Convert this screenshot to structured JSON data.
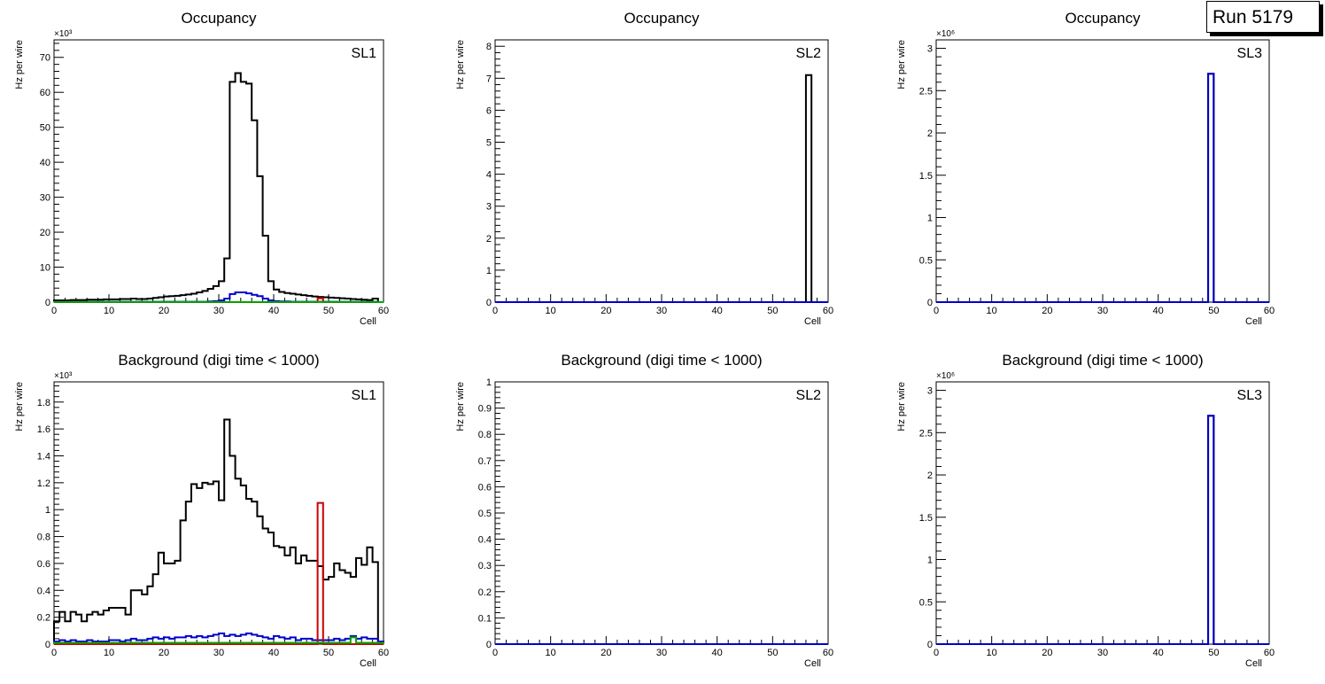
{
  "run_label": "Run 5179",
  "colors": {
    "black": "#000000",
    "blue": "#0000cc",
    "red": "#cc0000",
    "green": "#00aa00"
  },
  "chart_data": [
    {
      "type": "histogram",
      "title": "Occupancy",
      "label": "SL1",
      "xlabel": "Cell",
      "ylabel": "Hz per wire",
      "exponent": "×10³",
      "xlim": [
        0,
        60
      ],
      "ylim": [
        0,
        75
      ],
      "x_ticks": [
        0,
        10,
        20,
        30,
        40,
        50,
        60
      ],
      "y_ticks": [
        0,
        10,
        20,
        30,
        40,
        50,
        60,
        70
      ],
      "series": [
        {
          "name": "total",
          "color": "#000000",
          "values": [
            0.5,
            0.5,
            0.5,
            0.6,
            0.6,
            0.6,
            0.7,
            0.7,
            0.7,
            0.8,
            0.8,
            0.8,
            0.9,
            0.9,
            1.0,
            0.9,
            0.9,
            1.0,
            1.2,
            1.4,
            1.6,
            1.7,
            1.8,
            2.0,
            2.2,
            2.4,
            2.8,
            3.2,
            3.8,
            4.6,
            6.0,
            12.5,
            63.0,
            65.5,
            63.0,
            62.5,
            52.0,
            36.0,
            19.0,
            6.0,
            3.6,
            2.9,
            2.6,
            2.4,
            2.2,
            2.0,
            1.8,
            1.6,
            1.5,
            1.4,
            1.3,
            1.2,
            1.1,
            1.0,
            0.9,
            0.8,
            0.7,
            0.6,
            1.0,
            0.0
          ]
        },
        {
          "name": "blue",
          "color": "#0000cc",
          "values": [
            0.1,
            0.1,
            0.1,
            0.1,
            0.1,
            0.1,
            0.1,
            0.1,
            0.1,
            0.1,
            0.1,
            0.1,
            0.1,
            0.1,
            0.1,
            0.1,
            0.1,
            0.1,
            0.1,
            0.1,
            0.1,
            0.1,
            0.1,
            0.1,
            0.1,
            0.1,
            0.1,
            0.1,
            0.2,
            0.3,
            0.5,
            1.0,
            2.3,
            2.8,
            2.8,
            2.5,
            2.1,
            1.7,
            1.0,
            0.5,
            0.3,
            0.2,
            0.2,
            0.1,
            0.1,
            0.1,
            0.1,
            0.1,
            0.1,
            0.1,
            0.1,
            0.1,
            0.1,
            0.1,
            0.1,
            0.1,
            0.1,
            0.1,
            0.1,
            0.0
          ]
        },
        {
          "name": "red",
          "color": "#cc0000",
          "values": [
            0,
            0,
            0,
            0,
            0,
            0,
            0,
            0,
            0,
            0,
            0,
            0,
            0,
            0,
            0,
            0,
            0,
            0,
            0,
            0,
            0,
            0,
            0,
            0,
            0,
            0,
            0,
            0,
            0,
            0,
            0,
            0,
            0,
            0,
            0,
            0,
            0,
            0,
            0,
            0,
            0,
            0,
            0,
            0,
            0,
            0,
            0,
            0,
            1.1,
            0,
            0,
            0,
            0,
            0,
            0,
            0,
            0,
            0,
            0,
            0
          ]
        },
        {
          "name": "green",
          "color": "#00aa00",
          "values": [
            0.02,
            0.02,
            0.02,
            0.02,
            0.02,
            0.02,
            0.02,
            0.02,
            0.02,
            0.02,
            0.02,
            0.02,
            0.02,
            0.02,
            0.02,
            0.02,
            0.02,
            0.02,
            0.02,
            0.02,
            0.02,
            0.02,
            0.02,
            0.02,
            0.02,
            0.02,
            0.02,
            0.02,
            0.02,
            0.02,
            0.02,
            0.02,
            0.02,
            0.02,
            0.02,
            0.02,
            0.02,
            0.02,
            0.02,
            0.02,
            0.02,
            0.02,
            0.02,
            0.02,
            0.02,
            0.02,
            0.02,
            0.02,
            0.02,
            0.02,
            0.02,
            0.02,
            0.02,
            0.02,
            0.02,
            0.02,
            0.02,
            0.02,
            0.02,
            0.0
          ]
        }
      ]
    },
    {
      "type": "histogram",
      "title": "Occupancy",
      "label": "SL2",
      "xlabel": "Cell",
      "ylabel": "Hz per wire",
      "exponent": "",
      "xlim": [
        0,
        60
      ],
      "ylim": [
        0,
        8.2
      ],
      "x_ticks": [
        0,
        10,
        20,
        30,
        40,
        50,
        60
      ],
      "y_ticks": [
        0,
        1,
        2,
        3,
        4,
        5,
        6,
        7,
        8
      ],
      "series": [
        {
          "name": "total",
          "color": "#000000",
          "values": [
            0,
            0,
            0,
            0,
            0,
            0,
            0,
            0,
            0,
            0,
            0,
            0,
            0,
            0,
            0,
            0,
            0,
            0,
            0,
            0,
            0,
            0,
            0,
            0,
            0,
            0,
            0,
            0,
            0,
            0,
            0,
            0,
            0,
            0,
            0,
            0,
            0,
            0,
            0,
            0,
            0,
            0,
            0,
            0,
            0,
            0,
            0,
            0,
            0,
            0,
            0,
            0,
            0,
            0,
            0,
            0,
            7.1,
            0,
            0,
            0
          ]
        },
        {
          "name": "blue",
          "color": "#0000cc",
          "values": [
            0,
            0,
            0,
            0,
            0,
            0,
            0,
            0,
            0,
            0,
            0,
            0,
            0,
            0,
            0,
            0,
            0,
            0,
            0,
            0,
            0,
            0,
            0,
            0,
            0,
            0,
            0,
            0,
            0,
            0,
            0,
            0,
            0,
            0,
            0,
            0,
            0,
            0,
            0,
            0,
            0,
            0,
            0,
            0,
            0,
            0,
            0,
            0,
            0,
            0,
            0,
            0,
            0,
            0,
            0,
            0,
            0,
            0,
            0,
            0
          ]
        }
      ]
    },
    {
      "type": "histogram",
      "title": "Occupancy",
      "label": "SL3",
      "xlabel": "Cell",
      "ylabel": "Hz per wire",
      "exponent": "×10⁶",
      "xlim": [
        0,
        60
      ],
      "ylim": [
        0,
        3.1
      ],
      "x_ticks": [
        0,
        10,
        20,
        30,
        40,
        50,
        60
      ],
      "y_ticks": [
        0,
        0.5,
        1,
        1.5,
        2,
        2.5,
        3
      ],
      "series": [
        {
          "name": "total",
          "color": "#000000",
          "values": [
            0,
            0,
            0,
            0,
            0,
            0,
            0,
            0,
            0,
            0,
            0,
            0,
            0,
            0,
            0,
            0,
            0,
            0,
            0,
            0,
            0,
            0,
            0,
            0,
            0,
            0,
            0,
            0,
            0,
            0,
            0,
            0,
            0,
            0,
            0,
            0,
            0,
            0,
            0,
            0,
            0,
            0,
            0,
            0,
            0,
            0,
            0,
            0,
            0,
            2.7,
            0,
            0,
            0,
            0,
            0,
            0,
            0,
            0,
            0,
            0
          ]
        },
        {
          "name": "blue",
          "color": "#0000cc",
          "values": [
            0,
            0,
            0,
            0,
            0,
            0,
            0,
            0,
            0,
            0,
            0,
            0,
            0,
            0,
            0,
            0,
            0,
            0,
            0,
            0,
            0,
            0,
            0,
            0,
            0,
            0,
            0,
            0,
            0,
            0,
            0,
            0,
            0,
            0,
            0,
            0,
            0,
            0,
            0,
            0,
            0,
            0,
            0,
            0,
            0,
            0,
            0,
            0,
            0,
            2.7,
            0,
            0,
            0,
            0,
            0,
            0,
            0,
            0,
            0,
            0
          ]
        }
      ]
    },
    {
      "type": "histogram",
      "title": "Background (digi time < 1000)",
      "label": "SL1",
      "xlabel": "Cell",
      "ylabel": "Hz per wire",
      "exponent": "×10³",
      "xlim": [
        0,
        60
      ],
      "ylim": [
        0,
        1.95
      ],
      "x_ticks": [
        0,
        10,
        20,
        30,
        40,
        50,
        60
      ],
      "y_ticks": [
        0,
        0.2,
        0.4,
        0.6,
        0.8,
        1,
        1.2,
        1.4,
        1.6,
        1.8
      ],
      "series": [
        {
          "name": "total",
          "color": "#000000",
          "values": [
            0.17,
            0.24,
            0.17,
            0.24,
            0.22,
            0.17,
            0.22,
            0.24,
            0.22,
            0.25,
            0.27,
            0.27,
            0.27,
            0.22,
            0.4,
            0.4,
            0.37,
            0.43,
            0.52,
            0.68,
            0.6,
            0.6,
            0.62,
            0.92,
            1.06,
            1.19,
            1.16,
            1.2,
            1.19,
            1.21,
            1.07,
            1.67,
            1.4,
            1.23,
            1.18,
            1.08,
            1.06,
            0.95,
            0.86,
            0.83,
            0.73,
            0.72,
            0.66,
            0.72,
            0.6,
            0.66,
            0.62,
            0.62,
            0.58,
            0.48,
            0.5,
            0.6,
            0.55,
            0.53,
            0.5,
            0.64,
            0.59,
            0.72,
            0.61,
            0.02
          ]
        },
        {
          "name": "blue",
          "color": "#0000cc",
          "values": [
            0.02,
            0.03,
            0.02,
            0.03,
            0.02,
            0.02,
            0.03,
            0.02,
            0.02,
            0.02,
            0.03,
            0.03,
            0.02,
            0.03,
            0.04,
            0.03,
            0.03,
            0.04,
            0.05,
            0.04,
            0.05,
            0.04,
            0.05,
            0.05,
            0.06,
            0.05,
            0.06,
            0.05,
            0.06,
            0.07,
            0.08,
            0.06,
            0.07,
            0.06,
            0.07,
            0.08,
            0.07,
            0.06,
            0.05,
            0.04,
            0.06,
            0.05,
            0.04,
            0.05,
            0.03,
            0.04,
            0.04,
            0.03,
            0.03,
            0.03,
            0.03,
            0.04,
            0.03,
            0.04,
            0.06,
            0.04,
            0.05,
            0.04,
            0.04,
            0.02
          ]
        },
        {
          "name": "red",
          "color": "#cc0000",
          "values": [
            0,
            0,
            0,
            0,
            0,
            0,
            0,
            0,
            0,
            0,
            0,
            0,
            0,
            0,
            0,
            0,
            0,
            0,
            0,
            0,
            0,
            0,
            0,
            0,
            0,
            0,
            0,
            0,
            0,
            0,
            0,
            0,
            0,
            0,
            0,
            0,
            0,
            0,
            0,
            0,
            0,
            0,
            0,
            0,
            0,
            0,
            0,
            0,
            1.05,
            0,
            0,
            0,
            0,
            0,
            0,
            0,
            0,
            0,
            0,
            0
          ]
        },
        {
          "name": "green",
          "color": "#00aa00",
          "values": [
            0.01,
            0.01,
            0.01,
            0.01,
            0.01,
            0.01,
            0.01,
            0.01,
            0.01,
            0.01,
            0.01,
            0.01,
            0.01,
            0.01,
            0.01,
            0.01,
            0.01,
            0.01,
            0.01,
            0.01,
            0.01,
            0.01,
            0.01,
            0.01,
            0.01,
            0.01,
            0.01,
            0.01,
            0.01,
            0.01,
            0.01,
            0.01,
            0.01,
            0.01,
            0.01,
            0.01,
            0.01,
            0.01,
            0.01,
            0.01,
            0.01,
            0.01,
            0.01,
            0.01,
            0.01,
            0.01,
            0.01,
            0.01,
            0.01,
            0.01,
            0.01,
            0.01,
            0.01,
            0.01,
            0.05,
            0.01,
            0.01,
            0.01,
            0.01,
            0.01
          ]
        }
      ]
    },
    {
      "type": "histogram",
      "title": "Background (digi time < 1000)",
      "label": "SL2",
      "xlabel": "Cell",
      "ylabel": "Hz per wire",
      "exponent": "",
      "xlim": [
        0,
        60
      ],
      "ylim": [
        0,
        1.0
      ],
      "x_ticks": [
        0,
        10,
        20,
        30,
        40,
        50,
        60
      ],
      "y_ticks": [
        0,
        0.1,
        0.2,
        0.3,
        0.4,
        0.5,
        0.6,
        0.7,
        0.8,
        0.9,
        1
      ],
      "series": [
        {
          "name": "blue",
          "color": "#0000cc",
          "values": [
            0,
            0,
            0,
            0,
            0,
            0,
            0,
            0,
            0,
            0,
            0,
            0,
            0,
            0,
            0,
            0,
            0,
            0,
            0,
            0,
            0,
            0,
            0,
            0,
            0,
            0,
            0,
            0,
            0,
            0,
            0,
            0,
            0,
            0,
            0,
            0,
            0,
            0,
            0,
            0,
            0,
            0,
            0,
            0,
            0,
            0,
            0,
            0,
            0,
            0,
            0,
            0,
            0,
            0,
            0,
            0,
            0,
            0,
            0,
            0
          ]
        }
      ]
    },
    {
      "type": "histogram",
      "title": "Background (digi time < 1000)",
      "label": "SL3",
      "xlabel": "Cell",
      "ylabel": "Hz per wire",
      "exponent": "×10⁶",
      "xlim": [
        0,
        60
      ],
      "ylim": [
        0,
        3.1
      ],
      "x_ticks": [
        0,
        10,
        20,
        30,
        40,
        50,
        60
      ],
      "y_ticks": [
        0,
        0.5,
        1,
        1.5,
        2,
        2.5,
        3
      ],
      "series": [
        {
          "name": "total",
          "color": "#000000",
          "values": [
            0,
            0,
            0,
            0,
            0,
            0,
            0,
            0,
            0,
            0,
            0,
            0,
            0,
            0,
            0,
            0,
            0,
            0,
            0,
            0,
            0,
            0,
            0,
            0,
            0,
            0,
            0,
            0,
            0,
            0,
            0,
            0,
            0,
            0,
            0,
            0,
            0,
            0,
            0,
            0,
            0,
            0,
            0,
            0,
            0,
            0,
            0,
            0,
            0,
            2.7,
            0,
            0,
            0,
            0,
            0,
            0,
            0,
            0,
            0,
            0
          ]
        },
        {
          "name": "blue",
          "color": "#0000cc",
          "values": [
            0,
            0,
            0,
            0,
            0,
            0,
            0,
            0,
            0,
            0,
            0,
            0,
            0,
            0,
            0,
            0,
            0,
            0,
            0,
            0,
            0,
            0,
            0,
            0,
            0,
            0,
            0,
            0,
            0,
            0,
            0,
            0,
            0,
            0,
            0,
            0,
            0,
            0,
            0,
            0,
            0,
            0,
            0,
            0,
            0,
            0,
            0,
            0,
            0,
            2.7,
            0,
            0,
            0,
            0,
            0,
            0,
            0,
            0,
            0,
            0
          ]
        }
      ]
    }
  ]
}
